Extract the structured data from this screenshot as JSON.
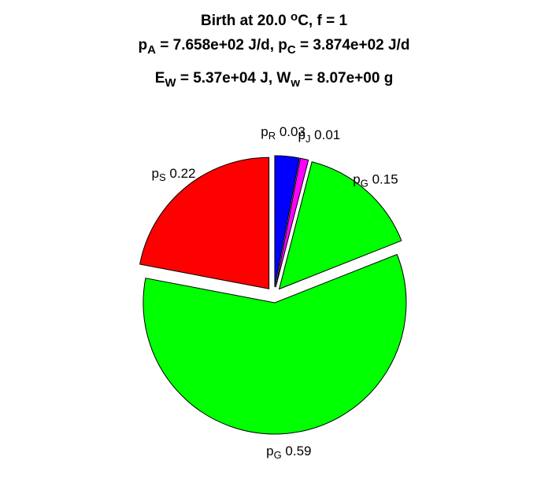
{
  "chart_data": {
    "type": "pie",
    "title_lines": [
      {
        "parts": [
          {
            "t": "Birth at 20.0 "
          },
          {
            "t": "o",
            "sup": true
          },
          {
            "t": "C, f = 1"
          }
        ]
      },
      {
        "parts": [
          {
            "t": "p"
          },
          {
            "t": "A",
            "sub": true
          },
          {
            "t": " = 7.658e+02 J/d, p"
          },
          {
            "t": "C",
            "sub": true
          },
          {
            "t": " = 3.874e+02 J/d"
          }
        ]
      },
      {
        "parts": [
          {
            "t": "E"
          },
          {
            "t": "W",
            "sub": true
          },
          {
            "t": " = 5.37e+04 J, W"
          },
          {
            "t": "w",
            "sub": true
          },
          {
            "t": " = 8.07e+00 g"
          }
        ]
      }
    ],
    "slices": [
      {
        "base": "p",
        "sub": "R",
        "value_label": "0.03",
        "value": 0.03,
        "color": "#0000ff",
        "exploded": true
      },
      {
        "base": "p",
        "sub": "J",
        "value_label": "0.01",
        "value": 0.01,
        "color": "#ff00ff",
        "exploded": true
      },
      {
        "base": "p",
        "sub": "G",
        "value_label": "0.15",
        "value": 0.15,
        "color": "#00ff00",
        "exploded": true
      },
      {
        "base": "p",
        "sub": "G",
        "value_label": "0.59",
        "value": 0.59,
        "color": "#00ff00",
        "exploded": true
      },
      {
        "base": "p",
        "sub": "S",
        "value_label": "0.22",
        "value": 0.22,
        "color": "#ff0000",
        "exploded": true
      }
    ]
  }
}
